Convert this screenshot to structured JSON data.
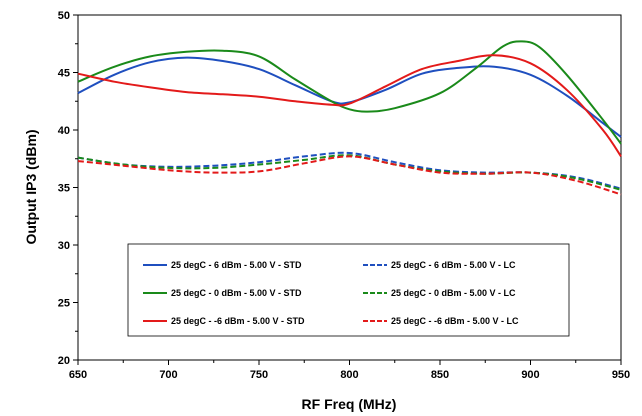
{
  "chart_data": {
    "type": "line",
    "title": "",
    "xlabel": "RF Freq (MHz)",
    "ylabel": "Output IP3 (dBm)",
    "xlim": [
      650,
      950
    ],
    "ylim": [
      20,
      50
    ],
    "xticks": [
      650,
      700,
      750,
      800,
      850,
      900,
      950
    ],
    "yticks": [
      20,
      25,
      30,
      35,
      40,
      45,
      50
    ],
    "grid": false,
    "legend_position": "bottom-center",
    "series": [
      {
        "name": "25 degC - 6 dBm - 5.00 V - STD",
        "color": "#1f4fbf",
        "dash": "solid",
        "x": [
          650,
          670,
          690,
          710,
          730,
          750,
          770,
          790,
          800,
          820,
          840,
          860,
          880,
          900,
          920,
          940,
          950
        ],
        "y": [
          43.2,
          44.8,
          45.9,
          46.3,
          46.0,
          45.3,
          43.9,
          42.5,
          42.4,
          43.5,
          44.9,
          45.4,
          45.5,
          44.8,
          43.0,
          40.6,
          39.4
        ]
      },
      {
        "name": "25 degC - 6 dBm - 5.00 V - LC",
        "color": "#1f4fbf",
        "dash": "dashed",
        "x": [
          650,
          675,
          700,
          725,
          750,
          775,
          800,
          825,
          850,
          875,
          900,
          925,
          950
        ],
        "y": [
          37.6,
          37.0,
          36.8,
          36.9,
          37.2,
          37.7,
          38.0,
          37.2,
          36.5,
          36.3,
          36.3,
          35.9,
          34.9
        ]
      },
      {
        "name": "25 degC - 0 dBm - 5.00 V - STD",
        "color": "#1a8a1a",
        "dash": "solid",
        "x": [
          650,
          670,
          690,
          710,
          730,
          750,
          770,
          790,
          800,
          810,
          825,
          850,
          870,
          885,
          895,
          905,
          920,
          940,
          950
        ],
        "y": [
          44.2,
          45.5,
          46.4,
          46.8,
          46.9,
          46.4,
          44.4,
          42.5,
          41.8,
          41.6,
          41.9,
          43.2,
          45.4,
          47.3,
          47.7,
          47.2,
          44.8,
          40.9,
          38.8
        ]
      },
      {
        "name": "25 degC - 0 dBm - 5.00 V - LC",
        "color": "#1a8a1a",
        "dash": "dashed",
        "x": [
          650,
          675,
          700,
          725,
          750,
          775,
          800,
          825,
          850,
          875,
          900,
          925,
          950
        ],
        "y": [
          37.6,
          37.0,
          36.7,
          36.7,
          37.0,
          37.4,
          37.8,
          37.0,
          36.4,
          36.2,
          36.3,
          35.8,
          34.8
        ]
      },
      {
        "name": "25 degC - -6 dBm - 5.00 V - STD",
        "color": "#e31a1a",
        "dash": "solid",
        "x": [
          650,
          670,
          690,
          710,
          730,
          750,
          770,
          790,
          800,
          820,
          840,
          860,
          880,
          900,
          920,
          940,
          950
        ],
        "y": [
          44.9,
          44.2,
          43.7,
          43.3,
          43.1,
          42.9,
          42.5,
          42.2,
          42.3,
          43.8,
          45.3,
          46.0,
          46.5,
          45.8,
          43.5,
          40.0,
          37.7
        ]
      },
      {
        "name": "25 degC - -6 dBm - 5.00 V - LC",
        "color": "#e31a1a",
        "dash": "dashed",
        "x": [
          650,
          675,
          700,
          725,
          750,
          775,
          800,
          825,
          850,
          875,
          900,
          925,
          950
        ],
        "y": [
          37.3,
          36.9,
          36.5,
          36.3,
          36.4,
          37.1,
          37.7,
          37.0,
          36.3,
          36.2,
          36.3,
          35.6,
          34.4
        ]
      }
    ]
  }
}
